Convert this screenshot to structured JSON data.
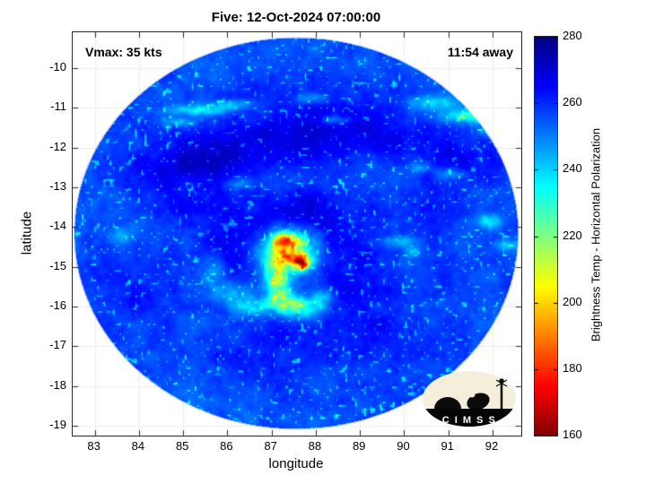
{
  "title": "Five: 12-Oct-2024 07:00:00",
  "annotations": {
    "vmax": "Vmax: 35 kts",
    "eta": "11:54 away"
  },
  "axes": {
    "xlabel": "longitude",
    "ylabel": "latitude",
    "x_ticks": [
      83,
      84,
      85,
      86,
      87,
      88,
      89,
      90,
      91,
      92
    ],
    "y_ticks": [
      -10,
      -11,
      -12,
      -13,
      -14,
      -15,
      -16,
      -17,
      -18,
      -19
    ]
  },
  "colorbar": {
    "label": "Brightness Temp - Horizontal Polarization",
    "ticks": [
      280,
      260,
      240,
      220,
      200,
      180,
      160
    ],
    "min_K": 160,
    "max_K": 280
  },
  "logo": {
    "text": "C I M S S"
  },
  "chart_data": {
    "type": "heatmap",
    "title": "Five: 12-Oct-2024 07:00:00",
    "xlabel": "longitude",
    "ylabel": "latitude",
    "xlim": [
      82.5,
      92.65
    ],
    "ylim": [
      -19.25,
      -9.1
    ],
    "value_label": "Brightness Temp - Horizontal Polarization",
    "value_range_K": [
      160,
      280
    ],
    "colormap": "reversed-jet (280 K dark blue -> 160 K dark red)",
    "grid": true,
    "storm": {
      "name": "Five",
      "vmax_kts": 35,
      "time": "12-Oct-2024 07:00:00",
      "center_estimate_lon": 87.6,
      "center_estimate_lat": -14.8
    },
    "background_temp_K": 256,
    "swath": {
      "center_lon": 87.55,
      "center_lat": -14.15,
      "radius_deg_lon": 5.05,
      "radius_deg_lat": 4.95
    },
    "feature_fields": [
      "lon",
      "lat",
      "sigma_lon_deg",
      "sigma_lat_deg",
      "delta_K"
    ],
    "cold_features": [
      [
        87.45,
        -14.6,
        0.55,
        0.45,
        -26
      ],
      [
        87.35,
        -14.45,
        0.3,
        0.22,
        -40
      ],
      [
        87.3,
        -14.3,
        0.16,
        0.12,
        -25
      ],
      [
        87.62,
        -14.82,
        0.17,
        0.14,
        -55
      ],
      [
        87.7,
        -14.95,
        0.1,
        0.09,
        -40
      ],
      [
        87.15,
        -14.9,
        0.22,
        0.3,
        -25
      ],
      [
        87.1,
        -15.45,
        0.2,
        0.28,
        -28
      ],
      [
        87.3,
        -15.9,
        0.28,
        0.2,
        -32
      ],
      [
        87.75,
        -16.05,
        0.3,
        0.16,
        -26
      ],
      [
        88.15,
        -15.75,
        0.18,
        0.18,
        -18
      ],
      [
        86.5,
        -16.0,
        0.3,
        0.15,
        -20
      ],
      [
        86.0,
        -15.65,
        0.3,
        0.18,
        -16
      ],
      [
        85.65,
        -15.15,
        0.2,
        0.25,
        -12
      ],
      [
        85.4,
        -11.05,
        0.45,
        0.09,
        -20
      ],
      [
        86.15,
        -10.9,
        0.3,
        0.08,
        -16
      ],
      [
        84.9,
        -11.35,
        0.25,
        0.08,
        -14
      ],
      [
        87.9,
        -10.75,
        0.3,
        0.1,
        -14
      ],
      [
        88.4,
        -11.3,
        0.22,
        0.09,
        -18
      ],
      [
        90.6,
        -10.85,
        0.4,
        0.12,
        -18
      ],
      [
        91.55,
        -11.2,
        0.5,
        0.12,
        -24
      ],
      [
        92.3,
        -10.95,
        0.3,
        0.1,
        -18
      ],
      [
        92.0,
        -11.6,
        0.25,
        0.1,
        -16
      ],
      [
        90.35,
        -12.5,
        0.18,
        0.1,
        -14
      ],
      [
        91.05,
        -12.65,
        0.22,
        0.1,
        -16
      ],
      [
        91.9,
        -13.85,
        0.2,
        0.12,
        -20
      ],
      [
        92.35,
        -14.45,
        0.22,
        0.1,
        -16
      ],
      [
        89.85,
        -14.35,
        0.3,
        0.1,
        -18
      ],
      [
        90.2,
        -14.6,
        0.14,
        0.1,
        -13
      ],
      [
        83.6,
        -14.2,
        0.2,
        0.15,
        -10
      ],
      [
        86.3,
        -12.9,
        0.25,
        0.1,
        -10
      ]
    ],
    "warm_features": [
      [
        84.6,
        -12.6,
        0.8,
        0.45,
        9
      ],
      [
        85.9,
        -12.15,
        0.9,
        0.5,
        10
      ],
      [
        87.3,
        -11.75,
        0.95,
        0.5,
        9
      ],
      [
        88.7,
        -11.45,
        0.85,
        0.5,
        9
      ],
      [
        90.2,
        -11.9,
        0.7,
        0.45,
        7
      ],
      [
        91.4,
        -12.2,
        0.9,
        0.5,
        8
      ],
      [
        86.6,
        -13.85,
        0.7,
        0.5,
        10
      ],
      [
        87.9,
        -13.55,
        0.55,
        0.4,
        9
      ],
      [
        88.4,
        -14.3,
        0.8,
        0.6,
        9
      ],
      [
        88.9,
        -15.4,
        0.75,
        0.6,
        8
      ],
      [
        86.15,
        -14.6,
        0.5,
        0.5,
        8
      ],
      [
        84.1,
        -15.3,
        0.8,
        0.7,
        5
      ],
      [
        87.1,
        -17.3,
        1.0,
        0.6,
        5
      ],
      [
        89.4,
        -16.7,
        0.8,
        0.6,
        6
      ],
      [
        85.0,
        -13.6,
        0.6,
        0.4,
        7
      ],
      [
        90.6,
        -13.5,
        0.6,
        0.5,
        7
      ]
    ],
    "notable_readings": [
      {
        "lon": 87.65,
        "lat": -14.85,
        "temp_K": 170
      },
      {
        "lon": 87.35,
        "lat": -14.45,
        "temp_K": 205
      },
      {
        "lon": 87.3,
        "lat": -15.9,
        "temp_K": 225
      },
      {
        "lon": 86.5,
        "lat": -16.0,
        "temp_K": 238
      },
      {
        "lon": 91.6,
        "lat": -11.2,
        "temp_K": 240
      },
      {
        "lon": 86.0,
        "lat": -12.0,
        "temp_K": 268
      },
      {
        "lon": 84.0,
        "lat": -16.5,
        "temp_K": 256
      }
    ]
  }
}
